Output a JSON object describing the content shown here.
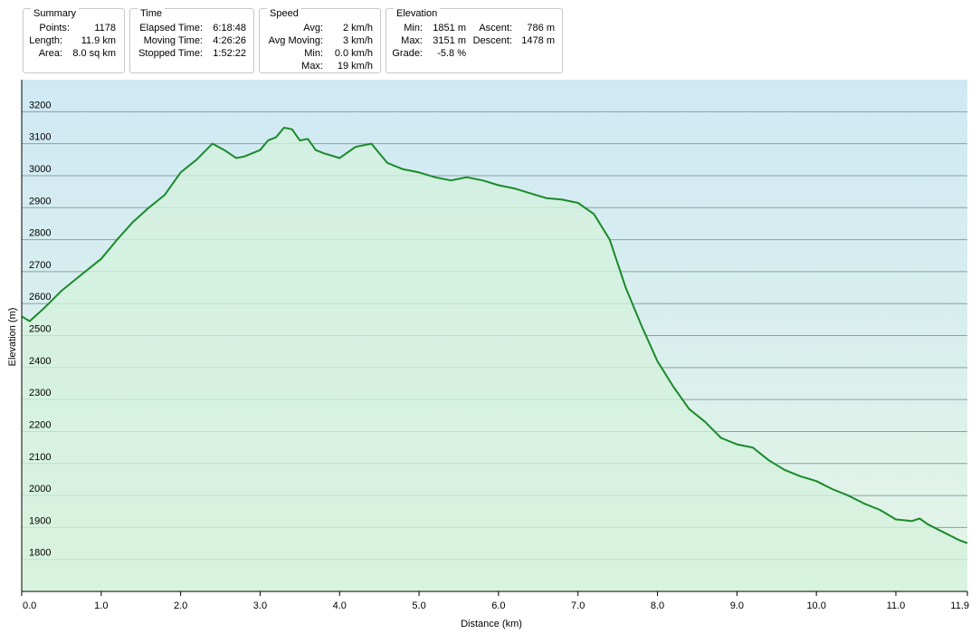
{
  "summary": {
    "title": "Summary",
    "points_label": "Points:",
    "points": "1178",
    "length_label": "Length:",
    "length": "11.9 km",
    "area_label": "Area:",
    "area": "8.0 sq km"
  },
  "time": {
    "title": "Time",
    "elapsed_label": "Elapsed Time:",
    "elapsed": "6:18:48",
    "moving_label": "Moving Time:",
    "moving": "4:26:26",
    "stopped_label": "Stopped Time:",
    "stopped": "1:52:22"
  },
  "speed": {
    "title": "Speed",
    "avg_label": "Avg:",
    "avg": "2 km/h",
    "avg_moving_label": "Avg Moving:",
    "avg_moving": "3 km/h",
    "min_label": "Min:",
    "min": "0.0 km/h",
    "max_label": "Max:",
    "max": "19 km/h"
  },
  "elevation": {
    "title": "Elevation",
    "min_label": "Min:",
    "min": "1851 m",
    "max_label": "Max:",
    "max": "3151 m",
    "grade_label": "Grade:",
    "grade": "-5.8 %",
    "ascent_label": "Ascent:",
    "ascent": "786 m",
    "descent_label": "Descent:",
    "descent": "1478 m"
  },
  "colors": {
    "line": "#1a8a2a",
    "grid": "#8aa0a6",
    "bg_top": "#cfe9f4",
    "bg_bottom": "#e4f5e6",
    "fill": "#d4f2dc"
  },
  "chart_data": {
    "type": "area",
    "xlabel": "Distance  (km)",
    "ylabel": "Elevation (m)",
    "xlim": [
      0,
      11.9
    ],
    "ylim": [
      1700,
      3300
    ],
    "grid": true,
    "x_ticks": [
      "0.0",
      "1.0",
      "2.0",
      "3.0",
      "4.0",
      "5.0",
      "6.0",
      "7.0",
      "8.0",
      "9.0",
      "10.0",
      "11.0",
      "11.9"
    ],
    "y_ticks": [
      "1800",
      "1900",
      "2000",
      "2100",
      "2200",
      "2300",
      "2400",
      "2500",
      "2600",
      "2700",
      "2800",
      "2900",
      "3000",
      "3100",
      "3200"
    ],
    "series": [
      {
        "x": [
          0,
          0.1,
          0.3,
          0.5,
          0.7,
          0.9,
          1.0,
          1.2,
          1.4,
          1.6,
          1.8,
          2.0,
          2.2,
          2.4,
          2.55,
          2.7,
          2.8,
          3.0,
          3.1,
          3.2,
          3.3,
          3.4,
          3.5,
          3.6,
          3.7,
          3.8,
          4.0,
          4.2,
          4.4,
          4.6,
          4.8,
          5.0,
          5.2,
          5.4,
          5.6,
          5.8,
          6.0,
          6.2,
          6.4,
          6.6,
          6.8,
          7.0,
          7.2,
          7.4,
          7.6,
          7.8,
          8.0,
          8.2,
          8.4,
          8.6,
          8.8,
          9.0,
          9.2,
          9.4,
          9.6,
          9.8,
          10.0,
          10.2,
          10.4,
          10.6,
          10.8,
          11.0,
          11.2,
          11.3,
          11.4,
          11.6,
          11.8,
          11.9
        ],
        "y": [
          2560,
          2545,
          2590,
          2640,
          2680,
          2720,
          2740,
          2800,
          2855,
          2900,
          2940,
          3010,
          3050,
          3100,
          3080,
          3055,
          3060,
          3080,
          3110,
          3120,
          3150,
          3145,
          3110,
          3115,
          3080,
          3070,
          3055,
          3090,
          3100,
          3040,
          3020,
          3010,
          2995,
          2985,
          2995,
          2985,
          2970,
          2960,
          2945,
          2930,
          2925,
          2915,
          2880,
          2800,
          2650,
          2530,
          2420,
          2340,
          2270,
          2230,
          2180,
          2160,
          2150,
          2110,
          2080,
          2060,
          2045,
          2020,
          2000,
          1975,
          1955,
          1925,
          1920,
          1928,
          1910,
          1885,
          1860,
          1851
        ]
      }
    ]
  }
}
